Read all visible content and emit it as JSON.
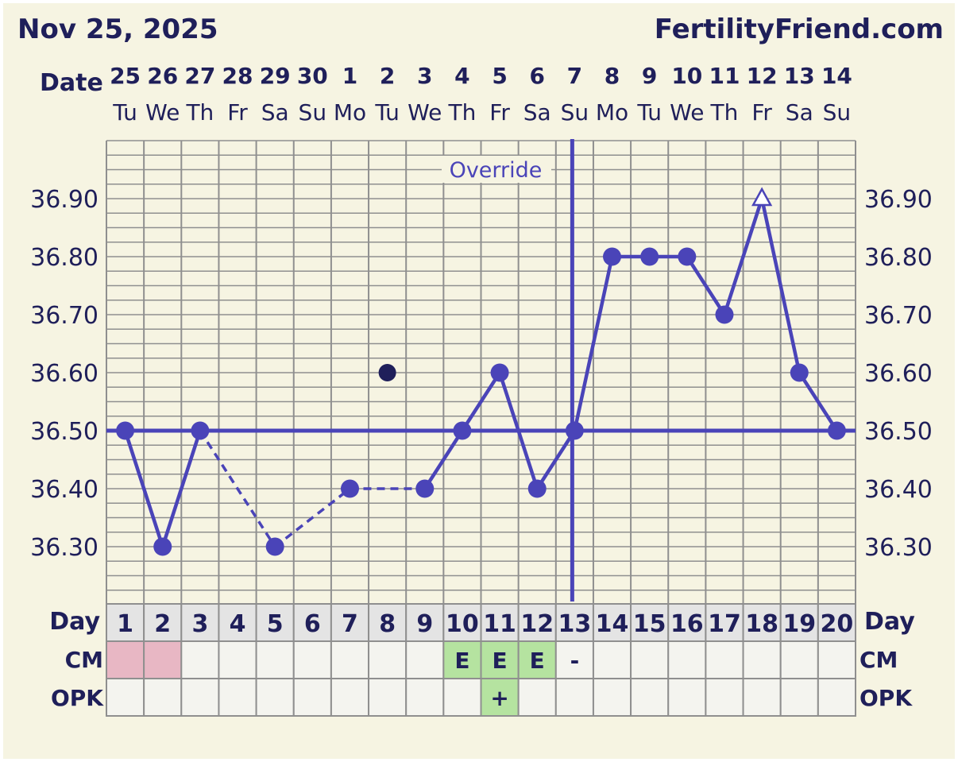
{
  "header": {
    "date": "Nov 25, 2025",
    "site": "FertilityFriend.com"
  },
  "labels": {
    "date_row": "Date",
    "day_row": "Day",
    "cm_row": "CM",
    "opk_row": "OPK",
    "override": "Override"
  },
  "colors": {
    "background": "#f6f4e2",
    "line": "#4a44b8",
    "text": "#1f1f5a",
    "grid": "#8f8f8f",
    "period": "#e8b7c4",
    "fertile": "#b5e3a0",
    "cell": "#f4f4ef",
    "day_cell": "#e4e4e4",
    "stray_point": "#1f1f5a"
  },
  "chart_data": {
    "type": "line",
    "title": "Nov 25, 2025",
    "xlabel": "Day",
    "ylabel": "",
    "ylim": [
      36.2,
      37.0
    ],
    "y_ticks": [
      "36.30",
      "36.40",
      "36.50",
      "36.60",
      "36.70",
      "36.80",
      "36.90"
    ],
    "grid": true,
    "dates": [
      "25",
      "26",
      "27",
      "28",
      "29",
      "30",
      "1",
      "2",
      "3",
      "4",
      "5",
      "6",
      "7",
      "8",
      "9",
      "10",
      "11",
      "12",
      "13",
      "14"
    ],
    "weekdays": [
      "Tu",
      "We",
      "Th",
      "Fr",
      "Sa",
      "Su",
      "Mo",
      "Tu",
      "We",
      "Th",
      "Fr",
      "Sa",
      "Su",
      "Mo",
      "Tu",
      "We",
      "Th",
      "Fr",
      "Sa",
      "Su"
    ],
    "days": [
      "1",
      "2",
      "3",
      "4",
      "5",
      "6",
      "7",
      "8",
      "9",
      "10",
      "11",
      "12",
      "13",
      "14",
      "15",
      "16",
      "17",
      "18",
      "19",
      "20"
    ],
    "series": [
      {
        "values": [
          36.5,
          36.3,
          36.5,
          null,
          36.3,
          null,
          36.4,
          null,
          36.4,
          36.5,
          36.6,
          36.4,
          36.5,
          36.8,
          36.8,
          36.8,
          36.7,
          36.9,
          36.6,
          36.5
        ]
      }
    ],
    "stray_points": [
      {
        "day": 8,
        "value": 36.6
      }
    ],
    "open_markers": [
      18
    ],
    "coverline": 36.5,
    "override_day": 13,
    "cm": [
      "period",
      "period",
      "",
      "",
      "",
      "",
      "",
      "",
      "",
      "E",
      "E",
      "E",
      "-",
      "",
      "",
      "",
      "",
      "",
      "",
      ""
    ],
    "opk": [
      "",
      "",
      "",
      "",
      "",
      "",
      "",
      "",
      "",
      "",
      "+",
      "",
      "",
      "",
      "",
      "",
      "",
      "",
      "",
      ""
    ]
  }
}
